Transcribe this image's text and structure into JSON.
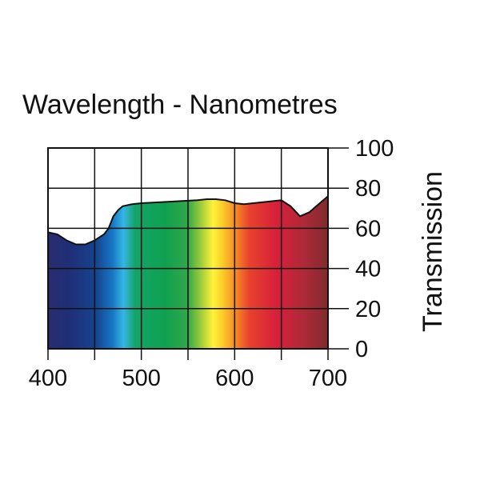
{
  "chart_data": {
    "type": "area",
    "title": "Wavelength - Nanometres",
    "xlabel": "",
    "ylabel": "Transmission",
    "xlim": [
      400,
      700
    ],
    "ylim": [
      0,
      100
    ],
    "x_ticks": [
      "400",
      "500",
      "600",
      "700"
    ],
    "y_ticks": [
      "0",
      "20",
      "40",
      "60",
      "80",
      "100"
    ],
    "grid": true,
    "x_gridlines": [
      400,
      450,
      500,
      550,
      600,
      650,
      700
    ],
    "y_gridlines": [
      0,
      20,
      40,
      60,
      80,
      100
    ],
    "fill": "visible-spectrum-gradient",
    "series": [
      {
        "x": [
          400,
          410,
          420,
          430,
          440,
          450,
          460,
          465,
          470,
          475,
          480,
          490,
          500,
          520,
          540,
          560,
          570,
          580,
          590,
          600,
          610,
          620,
          630,
          640,
          650,
          660,
          670,
          680,
          690,
          700
        ],
        "values": [
          58,
          57,
          54,
          52,
          52,
          54,
          57,
          60,
          66,
          69,
          71,
          72,
          72.5,
          73,
          73.5,
          74,
          74.5,
          74.5,
          74,
          72.5,
          72,
          72.5,
          73,
          73.5,
          74,
          71,
          66,
          68,
          72,
          76
        ]
      }
    ]
  }
}
